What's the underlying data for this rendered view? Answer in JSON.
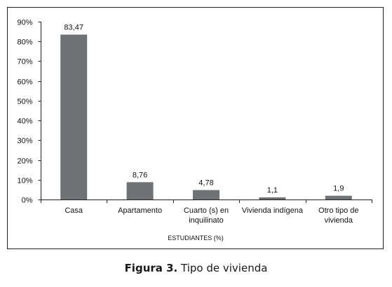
{
  "chart_data": {
    "type": "bar",
    "categories": [
      [
        "Casa"
      ],
      [
        "Apartamento"
      ],
      [
        "Cuarto (s) en",
        "inquilinato"
      ],
      [
        "Vivienda indígena"
      ],
      [
        "Otro tipo de",
        "vivienda"
      ]
    ],
    "values": [
      83.47,
      8.76,
      4.78,
      1.1,
      1.9
    ],
    "data_labels": [
      "83,47",
      "8,76",
      "4,78",
      "1,1",
      "1,9"
    ],
    "xlabel": "ESTUDIANTES (%)",
    "ylabel": "",
    "ylim": [
      0,
      90
    ],
    "yticks": [
      0,
      10,
      20,
      30,
      40,
      50,
      60,
      70,
      80,
      90
    ],
    "ytick_labels": [
      "0%",
      "10%",
      "20%",
      "30%",
      "40%",
      "50%",
      "60%",
      "70%",
      "80%",
      "90%"
    ],
    "grid": false,
    "legend": "none",
    "bar_color": "#6e7274"
  },
  "caption": {
    "label": "Figura 3.",
    "text": " Tipo de vivienda"
  }
}
